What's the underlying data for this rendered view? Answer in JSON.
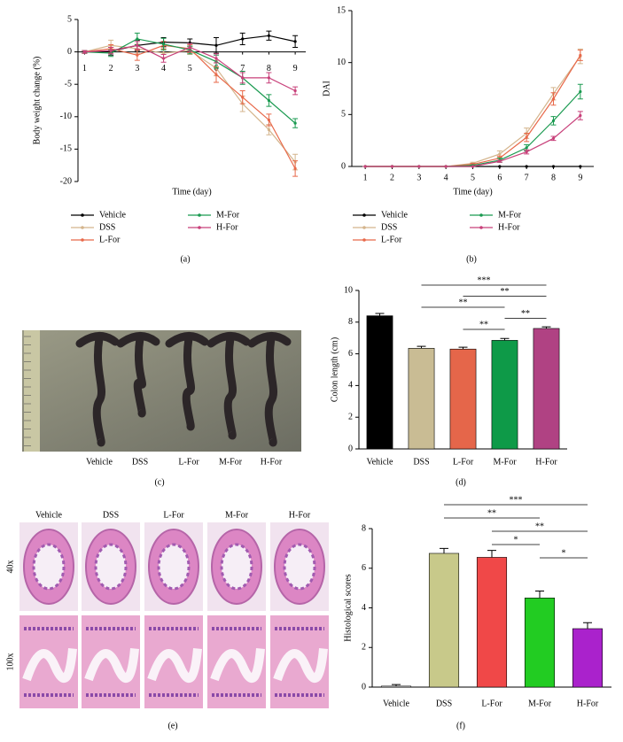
{
  "chart_data": [
    {
      "type": "line",
      "caption": "(a)",
      "x_label": "Time (day)",
      "y_label": "Body weight change (%)",
      "x": [
        1,
        2,
        3,
        4,
        5,
        6,
        7,
        8,
        9
      ],
      "xlim": [
        0.75,
        9.4
      ],
      "xticks": [
        1,
        2,
        3,
        4,
        5,
        6,
        7,
        8,
        9
      ],
      "ylim": [
        -20,
        5
      ],
      "yticks": [
        -20,
        -15,
        -10,
        -5,
        0,
        5
      ],
      "series": [
        {
          "name": "Vehicle",
          "color": "#000000",
          "values": [
            0,
            0.1,
            1,
            1.5,
            1.4,
            1,
            2,
            2.5,
            1.6
          ],
          "errors": [
            0.2,
            0.6,
            0.8,
            0.7,
            0.6,
            1.2,
            0.9,
            0.7,
            0.9
          ]
        },
        {
          "name": "DSS",
          "color": "#d4b48c",
          "values": [
            0,
            1,
            0.5,
            -0.2,
            0.2,
            -2.5,
            -8,
            -12,
            -17
          ],
          "errors": [
            0.2,
            0.8,
            0.7,
            0.8,
            0.6,
            1.2,
            1.2,
            0.8,
            1.2
          ]
        },
        {
          "name": "L-For",
          "color": "#e8694a",
          "values": [
            0,
            0.5,
            -0.5,
            1,
            0.5,
            -3.5,
            -7,
            -10.5,
            -18
          ],
          "errors": [
            0.2,
            0.6,
            0.8,
            0.6,
            0.6,
            1.2,
            1,
            0.9,
            1.2
          ]
        },
        {
          "name": "M-For",
          "color": "#1a9a50",
          "values": [
            0,
            -0.2,
            2,
            1.2,
            0.3,
            -1.5,
            -4,
            -7.5,
            -11
          ],
          "errors": [
            0.2,
            0.5,
            0.9,
            0.9,
            0.6,
            1,
            1,
            0.9,
            0.7
          ]
        },
        {
          "name": "H-For",
          "color": "#c8407a",
          "values": [
            0,
            0.2,
            1,
            -1,
            0.7,
            -1,
            -4,
            -4,
            -6
          ],
          "errors": [
            0.2,
            0.5,
            0.6,
            0.6,
            0.6,
            0.7,
            0.8,
            0.8,
            0.6
          ]
        }
      ]
    },
    {
      "type": "line",
      "caption": "(b)",
      "x_label": "Time (day)",
      "y_label": "DAI",
      "x": [
        1,
        2,
        3,
        4,
        5,
        6,
        7,
        8,
        9
      ],
      "xlim": [
        0.5,
        9.5
      ],
      "xticks": [
        1,
        2,
        3,
        4,
        5,
        6,
        7,
        8,
        9
      ],
      "ylim": [
        0,
        15
      ],
      "yticks": [
        0,
        5,
        10,
        15
      ],
      "series": [
        {
          "name": "Vehicle",
          "color": "#000000",
          "values": [
            0,
            0,
            0,
            0,
            0,
            0,
            0,
            0,
            0
          ],
          "errors": [
            0,
            0,
            0,
            0,
            0,
            0,
            0,
            0,
            0
          ]
        },
        {
          "name": "DSS",
          "color": "#d4b48c",
          "values": [
            0,
            0,
            0,
            0,
            0.3,
            1.2,
            3.2,
            7,
            10.6
          ],
          "errors": [
            0,
            0,
            0,
            0,
            0.1,
            0.3,
            0.5,
            0.6,
            0.7
          ]
        },
        {
          "name": "L-For",
          "color": "#e8694a",
          "values": [
            0,
            0,
            0,
            0,
            0.2,
            0.8,
            2.8,
            6.5,
            10.7
          ],
          "errors": [
            0,
            0,
            0,
            0,
            0.1,
            0.2,
            0.4,
            0.6,
            0.5
          ]
        },
        {
          "name": "M-For",
          "color": "#1a9a50",
          "values": [
            0,
            0,
            0,
            0,
            0.1,
            0.6,
            1.8,
            4.4,
            7.2
          ],
          "errors": [
            0,
            0,
            0,
            0,
            0.05,
            0.2,
            0.3,
            0.4,
            0.7
          ]
        },
        {
          "name": "H-For",
          "color": "#c8407a",
          "values": [
            0,
            0,
            0,
            0,
            0,
            0.5,
            1.4,
            2.7,
            4.9
          ],
          "errors": [
            0,
            0,
            0,
            0,
            0,
            0.1,
            0.2,
            0.2,
            0.4
          ]
        }
      ]
    },
    {
      "type": "bar",
      "caption": "(d)",
      "y_label": "Colon length (cm)",
      "categories": [
        "Vehicle",
        "DSS",
        "L-For",
        "M-For",
        "H-For"
      ],
      "values": [
        8.4,
        6.35,
        6.3,
        6.85,
        7.6
      ],
      "errors": [
        0.15,
        0.12,
        0.12,
        0.12,
        0.1
      ],
      "colors": [
        "#000000",
        "#c9bc94",
        "#e5664a",
        "#0e9a48",
        "#b04283"
      ],
      "ylim": [
        0,
        10
      ],
      "yticks": [
        0,
        2,
        4,
        6,
        8,
        10
      ],
      "significance": [
        {
          "label": "***",
          "between": [
            1,
            4
          ]
        },
        {
          "label": "**",
          "between": [
            2,
            4
          ]
        },
        {
          "label": "**",
          "between": [
            1,
            3
          ]
        },
        {
          "label": "**",
          "between": [
            3,
            4
          ]
        },
        {
          "label": "**",
          "between": [
            2,
            3
          ]
        }
      ]
    },
    {
      "type": "bar",
      "caption": "(f)",
      "y_label": "Histological scores",
      "categories": [
        "Vehicle",
        "DSS",
        "L-For",
        "M-For",
        "H-For"
      ],
      "values": [
        0.05,
        6.75,
        6.55,
        4.5,
        2.95
      ],
      "errors": [
        0.08,
        0.25,
        0.35,
        0.35,
        0.3
      ],
      "colors": [
        "#ffffff",
        "#c8c98a",
        "#f04848",
        "#22cc22",
        "#aa22cc"
      ],
      "ylim": [
        0,
        8
      ],
      "yticks": [
        0,
        2,
        4,
        6,
        8
      ],
      "significance": [
        {
          "label": "***",
          "between": [
            1,
            4
          ]
        },
        {
          "label": "**",
          "between": [
            1,
            3
          ]
        },
        {
          "label": "**",
          "between": [
            2,
            4
          ]
        },
        {
          "label": "*",
          "between": [
            2,
            3
          ]
        },
        {
          "label": "*",
          "between": [
            3,
            4
          ]
        }
      ]
    }
  ],
  "photo": {
    "caption": "(c)",
    "labels": [
      "Vehicle",
      "DSS",
      "L-For",
      "M-For",
      "H-For"
    ]
  },
  "histology": {
    "caption": "(e)",
    "columns": [
      "Vehicle",
      "DSS",
      "L-For",
      "M-For",
      "H-For"
    ],
    "rows": [
      "40x",
      "100x"
    ]
  }
}
